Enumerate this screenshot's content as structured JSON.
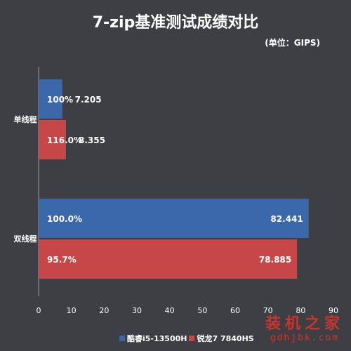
{
  "chart_data": {
    "type": "bar",
    "orientation": "horizontal",
    "title": "7-zip基准测试成绩对比",
    "subtitle": "(单位：GIPS)",
    "categories": [
      "单线程",
      "双线程"
    ],
    "series": [
      {
        "name": "酷睿i5-13500H",
        "color": "#3a68ab",
        "values": [
          7.205,
          82.441
        ],
        "inner_labels": [
          "100%",
          "100.0%"
        ],
        "value_labels": [
          "7.205",
          "82.441"
        ]
      },
      {
        "name": "锐龙7 7840HS",
        "color": "#c74748",
        "values": [
          8.355,
          78.885
        ],
        "inner_labels": [
          "116.0%",
          "95.7%"
        ],
        "value_labels": [
          "8.355",
          "78.885"
        ]
      }
    ],
    "xlim": [
      0,
      90
    ],
    "xticks": [
      "0",
      "10",
      "20",
      "30",
      "40",
      "50",
      "60",
      "70",
      "80",
      "90"
    ],
    "grid": false,
    "legend_position": "bottom"
  },
  "watermark": {
    "text": "装机之家",
    "url": "gdhjbk.com"
  }
}
